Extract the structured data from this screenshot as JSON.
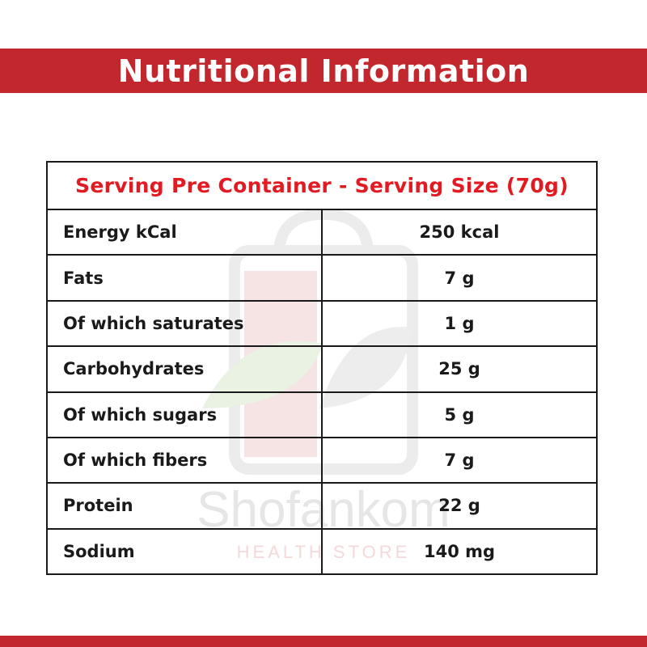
{
  "header": {
    "title": "Nutritional Information"
  },
  "table": {
    "heading": "Serving Pre Container - Serving Size (70g)",
    "rows": [
      {
        "label": "Energy kCal",
        "value": "250 kcal"
      },
      {
        "label": "Fats",
        "value": "7 g"
      },
      {
        "label": "Of which saturates",
        "value": "1 g"
      },
      {
        "label": "Carbohydrates",
        "value": "25 g"
      },
      {
        "label": "Of which sugars",
        "value": "5 g"
      },
      {
        "label": "Of which fibers",
        "value": "7 g"
      },
      {
        "label": "Protein",
        "value": "22 g"
      },
      {
        "label": "Sodium",
        "value": "140 mg"
      }
    ]
  },
  "watermark": {
    "name": "Shofankom",
    "tagline": "HEALTH STORE"
  },
  "colors": {
    "band": "#c1272d",
    "heading_text": "#e21b23",
    "border": "#1a1a1a"
  }
}
